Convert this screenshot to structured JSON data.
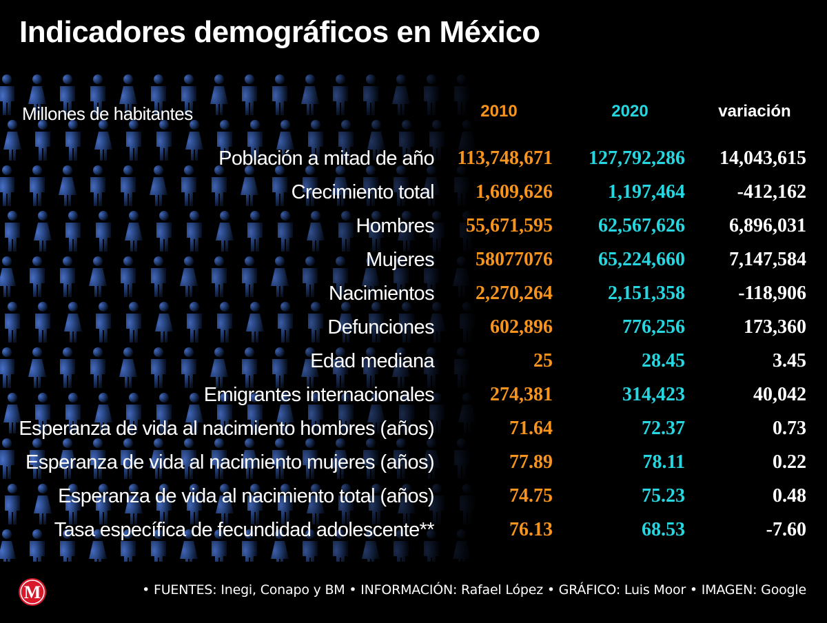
{
  "title": "Indicadores demográficos en México",
  "colors": {
    "background": "#000000",
    "year_2010": "#f7941d",
    "year_2020": "#26d6e0",
    "variation": "#ffffff",
    "figures_bg": "#2a4a8a",
    "logo": "#d7192b"
  },
  "chart_data": {
    "type": "table",
    "subtitle": "Millones de habitantes",
    "columns": [
      "2010",
      "2020",
      "variación"
    ],
    "rows": [
      {
        "label": "Población a mitad de año",
        "v2010": "113,748,671",
        "v2020": "127,792,286",
        "variation": "14,043,615"
      },
      {
        "label": "Crecimiento total",
        "v2010": "1,609,626",
        "v2020": "1,197,464",
        "variation": "-412,162"
      },
      {
        "label": "Hombres",
        "v2010": "55,671,595",
        "v2020": "62,567,626",
        "variation": "6,896,031"
      },
      {
        "label": "Mujeres",
        "v2010": "58077076",
        "v2020": "65,224,660",
        "variation": "7,147,584"
      },
      {
        "label": "Nacimientos",
        "v2010": "2,270,264",
        "v2020": "2,151,358",
        "variation": "-118,906"
      },
      {
        "label": "Defunciones",
        "v2010": "602,896",
        "v2020": "776,256",
        "variation": "173,360"
      },
      {
        "label": "Edad mediana",
        "v2010": "25",
        "v2020": "28.45",
        "variation": "3.45"
      },
      {
        "label": "Emigrantes internacionales",
        "v2010": "274,381",
        "v2020": "314,423",
        "variation": "40,042"
      },
      {
        "label": "Esperanza de vida al nacimiento hombres (años)",
        "v2010": "71.64",
        "v2020": "72.37",
        "variation": "0.73"
      },
      {
        "label": "Esperanza de vida al nacimiento mujeres  (años)",
        "v2010": "77.89",
        "v2020": "78.11",
        "variation": "0.22"
      },
      {
        "label": "Esperanza de vida al nacimiento total (años)",
        "v2010": "74.75",
        "v2020": "75.23",
        "variation": "0.48"
      },
      {
        "label": "Tasa específica de fecundidad adolescente**",
        "v2010": "76.13",
        "v2020": "68.53",
        "variation": "-7.60"
      }
    ]
  },
  "logo": {
    "letter": "M",
    "icon": "milenio-logo-icon"
  },
  "credits": "• FUENTES: Inegi, Conapo y BM • INFORMACIÓN: Rafael López • GRÁFICO: Luis Moor • IMAGEN: Google"
}
